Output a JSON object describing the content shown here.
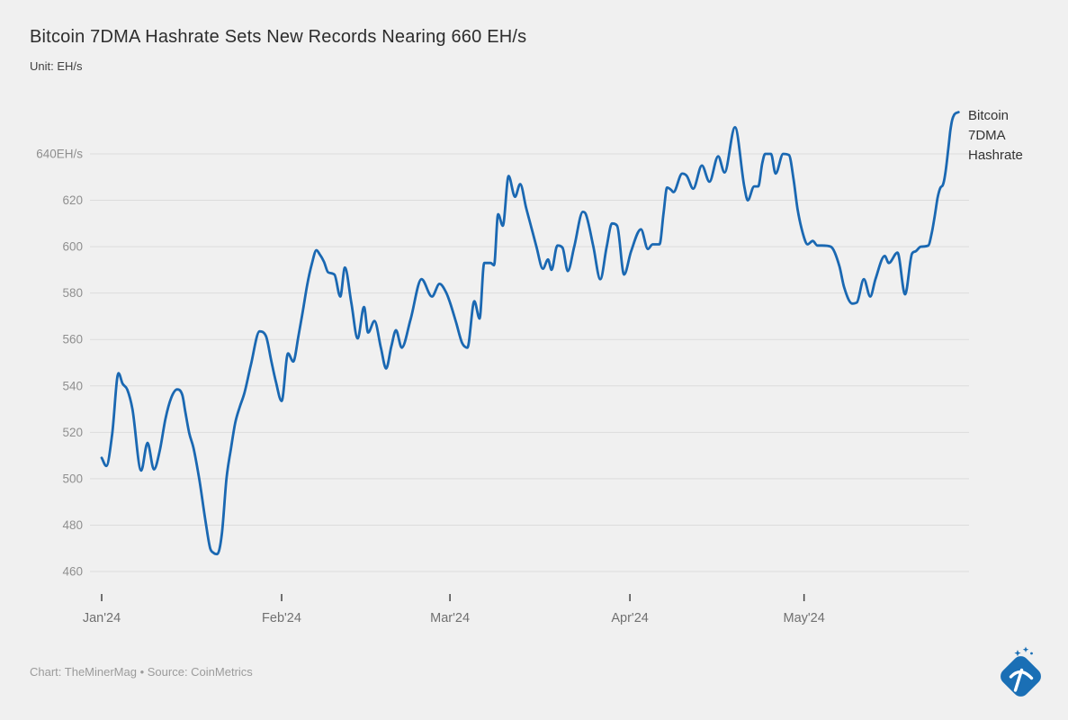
{
  "title": "Bitcoin 7DMA Hashrate Sets New Records Nearing 660 EH/s",
  "subtitle": "Unit: EH/s",
  "footer": "Chart: TheMinerMag • Source: CoinMetrics",
  "colors": {
    "background": "#f0f0f0",
    "grid": "#dcdcdc",
    "line": "#1a68b2",
    "title_text": "#2d2d2d",
    "y_axis_text": "#8f8f8f",
    "x_axis_text": "#707070",
    "tick_mark": "#444444",
    "footer_text": "#9b9b9b",
    "logo_blue": "#1a6fb5"
  },
  "chart_data": {
    "type": "line",
    "title": "Bitcoin 7DMA Hashrate Sets New Records Nearing 660 EH/s",
    "unit": "EH/s",
    "grid": "horizontal",
    "legend_position": "end-of-line",
    "ylim": [
      454,
      662
    ],
    "x_ticks": [
      {
        "label": "Jan'24",
        "day": 0
      },
      {
        "label": "Feb'24",
        "day": 31
      },
      {
        "label": "Mar'24",
        "day": 60
      },
      {
        "label": "Apr'24",
        "day": 91
      },
      {
        "label": "May'24",
        "day": 121
      }
    ],
    "y_ticks": [
      {
        "label": "640EH/s",
        "value": 640
      },
      {
        "label": "620",
        "value": 620
      },
      {
        "label": "600",
        "value": 600
      },
      {
        "label": "580",
        "value": 580
      },
      {
        "label": "560",
        "value": 560
      },
      {
        "label": "540",
        "value": 540
      },
      {
        "label": "520",
        "value": 520
      },
      {
        "label": "500",
        "value": 500
      },
      {
        "label": "480",
        "value": 480
      },
      {
        "label": "460",
        "value": 460
      }
    ],
    "series": [
      {
        "name": "Bitcoin 7DMA Hashrate",
        "color": "#1a68b2",
        "x_is": "days since Jan'24 tick",
        "points": [
          [
            0,
            509
          ],
          [
            0.8,
            505.5
          ],
          [
            1.8,
            519
          ],
          [
            2.9,
            545.5
          ],
          [
            3.6,
            541
          ],
          [
            4.4,
            538.5
          ],
          [
            5.3,
            530
          ],
          [
            6.8,
            503.5
          ],
          [
            7.9,
            515.5
          ],
          [
            9,
            504
          ],
          [
            10,
            512
          ],
          [
            11,
            526
          ],
          [
            12,
            535
          ],
          [
            13,
            538.5
          ],
          [
            13.9,
            536
          ],
          [
            14.4,
            529
          ],
          [
            15.1,
            519.5
          ],
          [
            15.8,
            513.5
          ],
          [
            16.8,
            500
          ],
          [
            17.9,
            481.5
          ],
          [
            18.7,
            470
          ],
          [
            19.3,
            468
          ],
          [
            19.9,
            467.5
          ],
          [
            20.7,
            476
          ],
          [
            21.5,
            500
          ],
          [
            22.3,
            513.5
          ],
          [
            23,
            524
          ],
          [
            23.8,
            531
          ],
          [
            24.6,
            537
          ],
          [
            25.7,
            549
          ],
          [
            27.2,
            563.5
          ],
          [
            28.3,
            561.5
          ],
          [
            29.2,
            551
          ],
          [
            30,
            542
          ],
          [
            31,
            533.5
          ],
          [
            32.1,
            554
          ],
          [
            33,
            550.5
          ],
          [
            33.9,
            561.5
          ],
          [
            34.7,
            573
          ],
          [
            35.4,
            583.5
          ],
          [
            36.2,
            592.5
          ],
          [
            37,
            598.5
          ],
          [
            37.5,
            597
          ],
          [
            38.3,
            593.5
          ],
          [
            39,
            589
          ],
          [
            40.1,
            588
          ],
          [
            41.1,
            578.5
          ],
          [
            41.9,
            591
          ],
          [
            43,
            576
          ],
          [
            44.1,
            560.5
          ],
          [
            45.2,
            574
          ],
          [
            45.9,
            563
          ],
          [
            47,
            568
          ],
          [
            48.1,
            556.5
          ],
          [
            49,
            547.5
          ],
          [
            49.9,
            557
          ],
          [
            50.7,
            564
          ],
          [
            51.7,
            556.5
          ],
          [
            53.2,
            568.5
          ],
          [
            55.1,
            586
          ],
          [
            56.9,
            578.5
          ],
          [
            58.2,
            584
          ],
          [
            59.4,
            580
          ],
          [
            60,
            576
          ],
          [
            61.1,
            567
          ],
          [
            62.1,
            558.5
          ],
          [
            63,
            556.5
          ],
          [
            64.2,
            576.5
          ],
          [
            65.1,
            569
          ],
          [
            65.9,
            593
          ],
          [
            67,
            593
          ],
          [
            67.6,
            592
          ],
          [
            68.3,
            614
          ],
          [
            69.1,
            609
          ],
          [
            70.1,
            630.5
          ],
          [
            71.2,
            621.5
          ],
          [
            72.1,
            627
          ],
          [
            73.1,
            617
          ],
          [
            74,
            608.5
          ],
          [
            74.9,
            600
          ],
          [
            76,
            590.5
          ],
          [
            76.9,
            594.5
          ],
          [
            77.5,
            590
          ],
          [
            78.5,
            600.5
          ],
          [
            79.4,
            599.5
          ],
          [
            80.3,
            589.5
          ],
          [
            81.4,
            600
          ],
          [
            82.9,
            615
          ],
          [
            83.4,
            614
          ],
          [
            84.7,
            600
          ],
          [
            85.9,
            586
          ],
          [
            87,
            600
          ],
          [
            87.9,
            610
          ],
          [
            88.8,
            609
          ],
          [
            90,
            588
          ],
          [
            91.2,
            598
          ],
          [
            92.9,
            607.5
          ],
          [
            94.1,
            599
          ],
          [
            94.9,
            601
          ],
          [
            96.1,
            601
          ],
          [
            96.8,
            614.5
          ],
          [
            97.4,
            625.5
          ],
          [
            98.1,
            624.5
          ],
          [
            98.5,
            623.5
          ],
          [
            100,
            631.5
          ],
          [
            100.8,
            630.5
          ],
          [
            101.9,
            625
          ],
          [
            103.4,
            635
          ],
          [
            104.7,
            628
          ],
          [
            106.2,
            639
          ],
          [
            107.3,
            632
          ],
          [
            109.1,
            651.5
          ],
          [
            110.7,
            626
          ],
          [
            111.3,
            620
          ],
          [
            112.4,
            626
          ],
          [
            113.1,
            626
          ],
          [
            113.8,
            636
          ],
          [
            114.3,
            640
          ],
          [
            115.3,
            640
          ],
          [
            116.1,
            631.5
          ],
          [
            117.4,
            640
          ],
          [
            118.4,
            639.5
          ],
          [
            119.2,
            629
          ],
          [
            119.9,
            616
          ],
          [
            121,
            604
          ],
          [
            121.6,
            601
          ],
          [
            122.5,
            602.5
          ],
          [
            123.3,
            600.5
          ],
          [
            124.1,
            600.5
          ],
          [
            125.6,
            600
          ],
          [
            127.1,
            591.5
          ],
          [
            127.9,
            582.5
          ],
          [
            129.3,
            575.5
          ],
          [
            130.1,
            576
          ],
          [
            131.3,
            586
          ],
          [
            132.4,
            578.5
          ],
          [
            133.3,
            586
          ],
          [
            134.9,
            596
          ],
          [
            135.6,
            593
          ],
          [
            137.1,
            597.5
          ],
          [
            138.4,
            579.5
          ],
          [
            139.6,
            597
          ],
          [
            140.2,
            598
          ],
          [
            141.1,
            600
          ],
          [
            142.4,
            600.5
          ],
          [
            143,
            606
          ],
          [
            143.5,
            613
          ],
          [
            144,
            621
          ],
          [
            144.5,
            625.5
          ],
          [
            144.9,
            626.5
          ],
          [
            145.3,
            631
          ],
          [
            145.8,
            641
          ],
          [
            146.2,
            650
          ],
          [
            146.5,
            654.5
          ],
          [
            146.9,
            657
          ],
          [
            147.6,
            658
          ]
        ]
      }
    ]
  }
}
